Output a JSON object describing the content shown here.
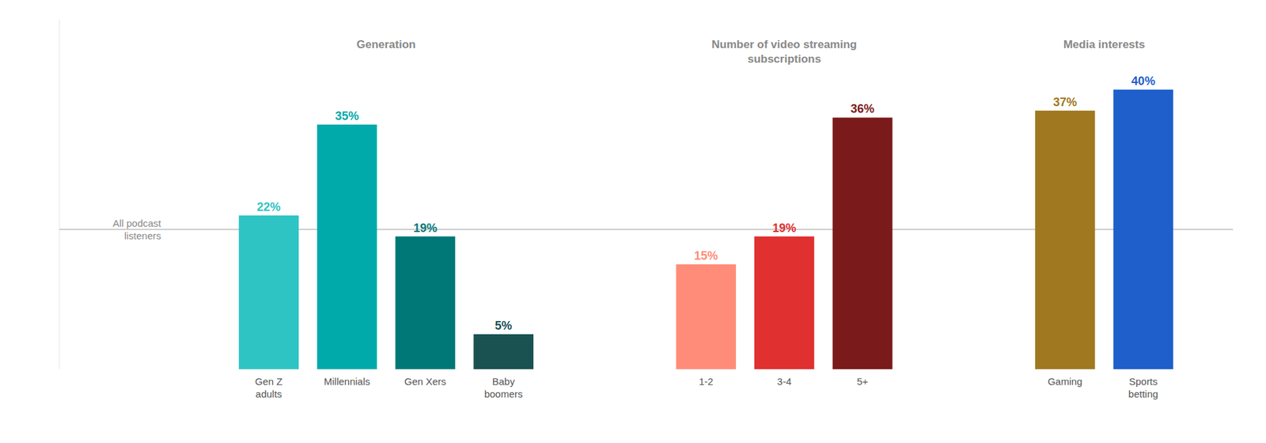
{
  "chart_data": {
    "type": "bar",
    "groups": [
      {
        "title": "Generation",
        "categories": [
          "Gen Z\nadults",
          "Millennials",
          "Gen Xers",
          "Baby\nboomers"
        ],
        "values": [
          22,
          35,
          19,
          5
        ],
        "value_labels": [
          "22%",
          "35%",
          "19%",
          "5%"
        ],
        "colors": [
          "#2EC4C4",
          "#00AAAA",
          "#007878",
          "#1A5252"
        ]
      },
      {
        "title": "Number of video streaming\nsubscriptions",
        "categories": [
          "1-2",
          "3-4",
          "5+"
        ],
        "values": [
          15,
          19,
          36
        ],
        "value_labels": [
          "15%",
          "19%",
          "36%"
        ],
        "colors": [
          "#FF8C78",
          "#E03030",
          "#7B1A1A"
        ]
      },
      {
        "title": "Media interests",
        "categories": [
          "Gaming",
          "Sports\nbetting"
        ],
        "values": [
          37,
          40
        ],
        "value_labels": [
          "37%",
          "40%"
        ],
        "colors": [
          "#A07820",
          "#1E5FCC"
        ]
      }
    ],
    "reference_line": {
      "value": 20,
      "label": "All podcast\nlisteners",
      "color": "#bbbbbb"
    },
    "ylim": [
      0,
      50
    ],
    "data_labels": true,
    "tick_labels": "x",
    "grid": false
  }
}
